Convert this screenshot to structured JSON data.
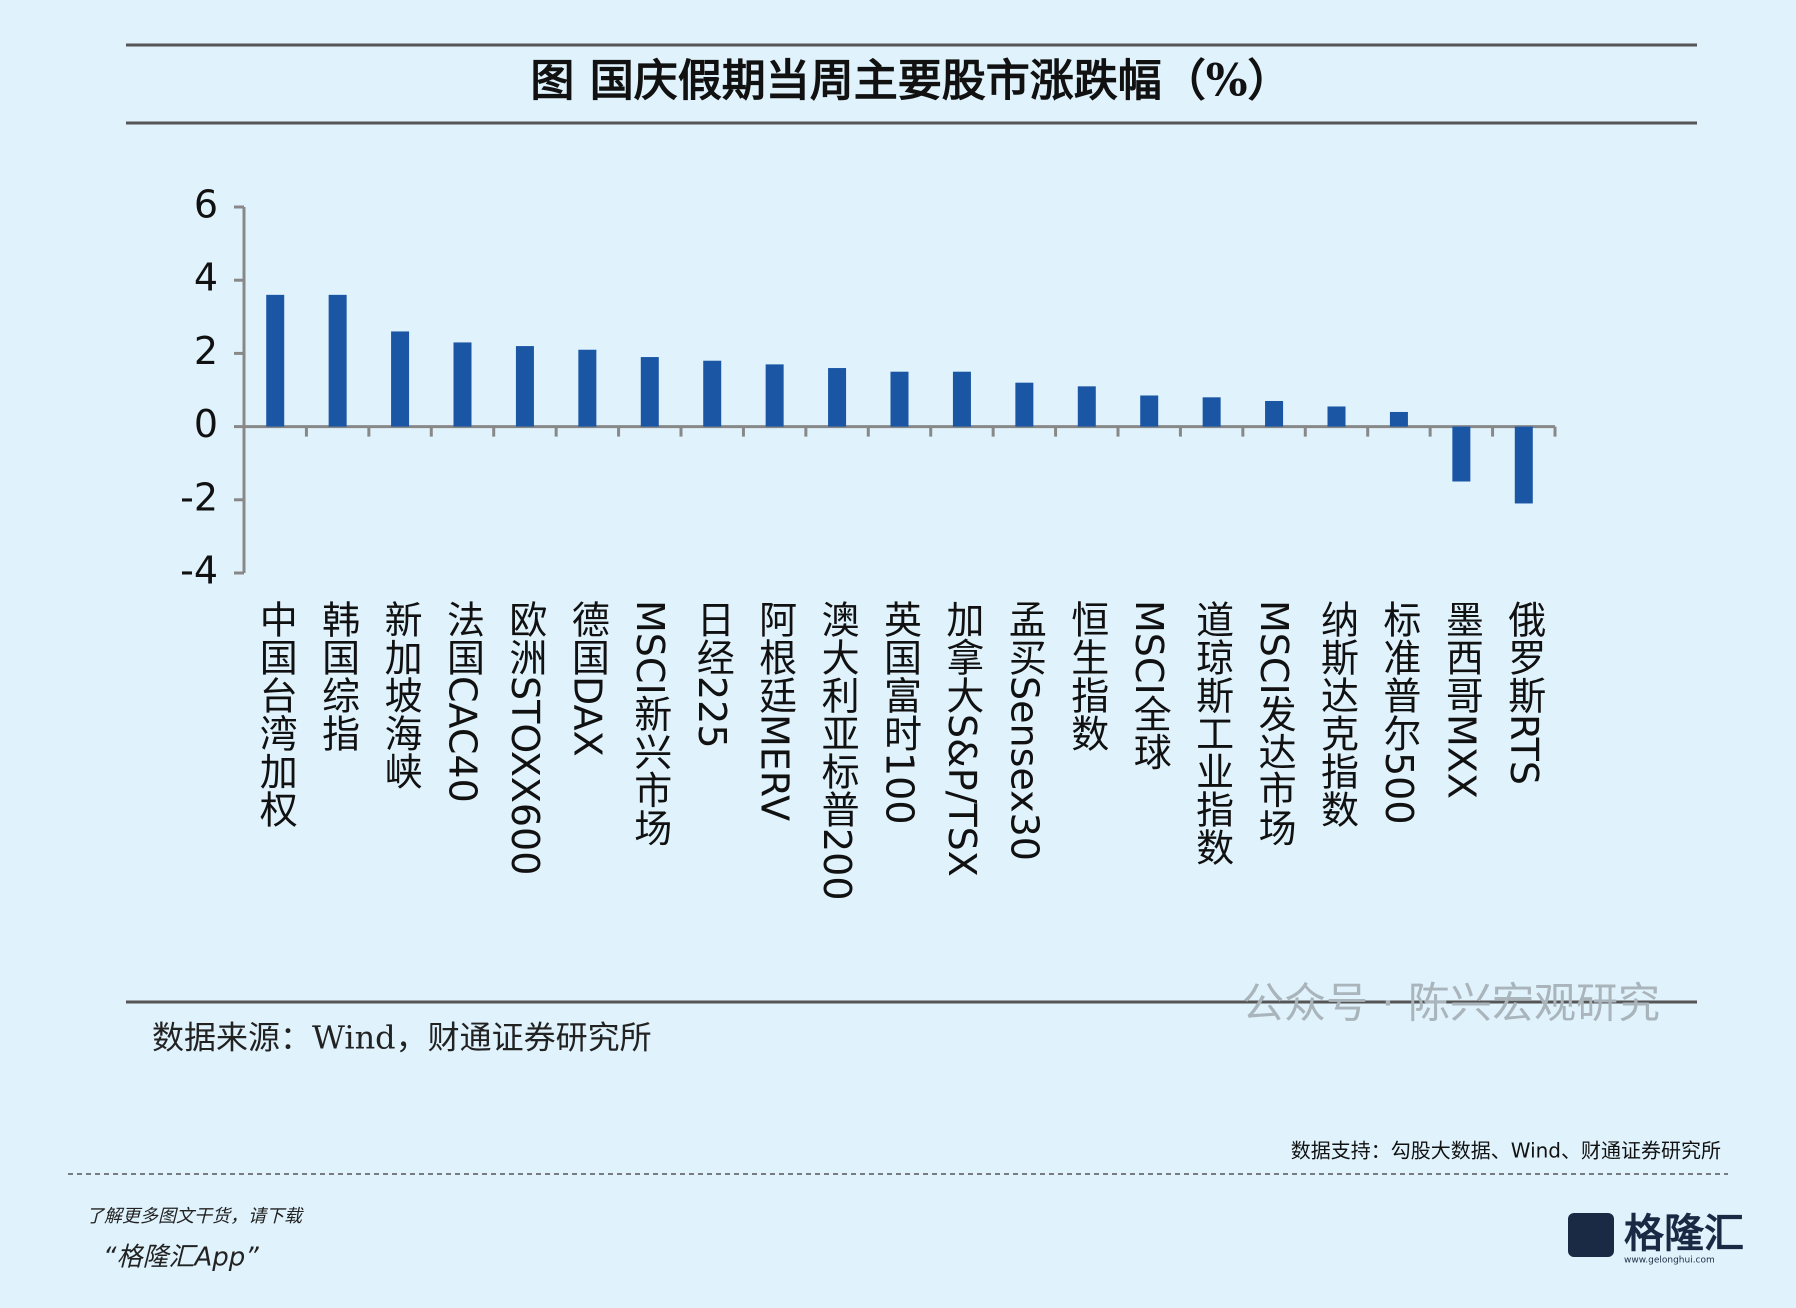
{
  "chart_data": {
    "type": "bar",
    "title": "图  国庆假期当周主要股市涨跌幅（%）",
    "categories": [
      "中国台湾加权",
      "韩国综指",
      "新加坡海峡",
      "法国CAC40",
      "欧洲STOXX600",
      "德国DAX",
      "MSCI新兴市场",
      "日经225",
      "阿根廷MERV",
      "澳大利亚标普200",
      "英国富时100",
      "加拿大S&P/TSX",
      "孟买Sensex30",
      "恒生指数",
      "MSCI全球",
      "道琼斯工业指数",
      "MSCI发达市场",
      "纳斯达克指数",
      "标准普尔500",
      "墨西哥MXX",
      "俄罗斯RTS"
    ],
    "values": [
      3.6,
      3.6,
      2.6,
      2.3,
      2.2,
      2.1,
      1.9,
      1.8,
      1.7,
      1.6,
      1.5,
      1.5,
      1.2,
      1.1,
      0.85,
      0.8,
      0.7,
      0.55,
      0.4,
      -1.5,
      -2.1
    ],
    "color": "#1a56a4",
    "ylim": [
      -4,
      6
    ],
    "yticks": [
      -4,
      -2,
      0,
      2,
      4,
      6
    ],
    "source": "数据来源：Wind，财通证券研究所",
    "watermark": "公众号 · 陈兴宏观研究"
  },
  "footer": {
    "support": "数据支持：勾股大数据、Wind、财通证券研究所",
    "prompt": "了解更多图文干货，请下载",
    "app": "“格隆汇App”",
    "logo": "格隆汇",
    "logo_url": "www.gelonghui.com"
  }
}
